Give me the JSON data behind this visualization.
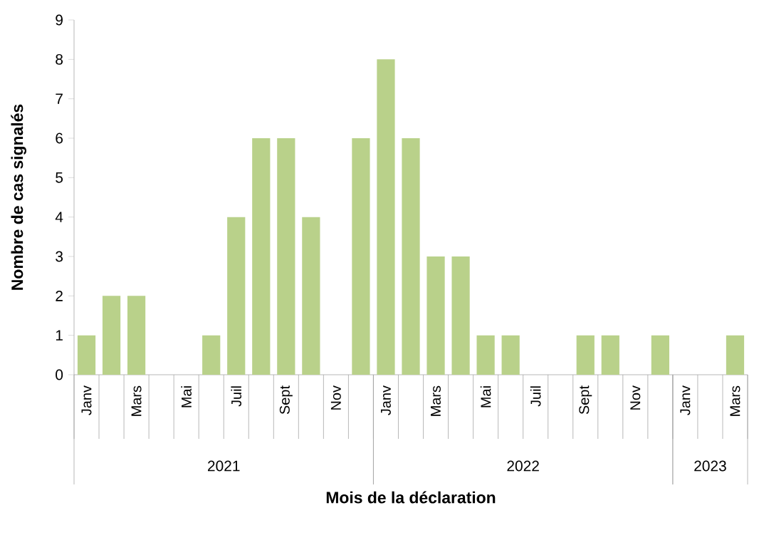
{
  "chart_data": {
    "type": "bar",
    "xlabel": "Mois de la déclaration",
    "ylabel": "Nombre de cas signalés",
    "categories": [
      "Janv",
      null,
      "Mars",
      null,
      "Mai",
      null,
      "Juil",
      null,
      "Sept",
      null,
      "Nov",
      null,
      "Janv",
      null,
      "Mars",
      null,
      "Mai",
      null,
      "Juil",
      null,
      "Sept",
      null,
      "Nov",
      null,
      "Janv",
      null,
      "Mars"
    ],
    "values": [
      1,
      2,
      2,
      0,
      0,
      1,
      4,
      6,
      6,
      4,
      0,
      6,
      8,
      6,
      3,
      3,
      1,
      1,
      0,
      0,
      1,
      1,
      0,
      1,
      0,
      0,
      1
    ],
    "color": "#b9d18a",
    "annotations": [
      "2021",
      "2022",
      "2023"
    ],
    "ylim": [
      0,
      9
    ],
    "yticks": [
      0,
      1,
      2,
      3,
      4,
      5,
      6,
      7,
      8,
      9
    ],
    "grid": false
  }
}
